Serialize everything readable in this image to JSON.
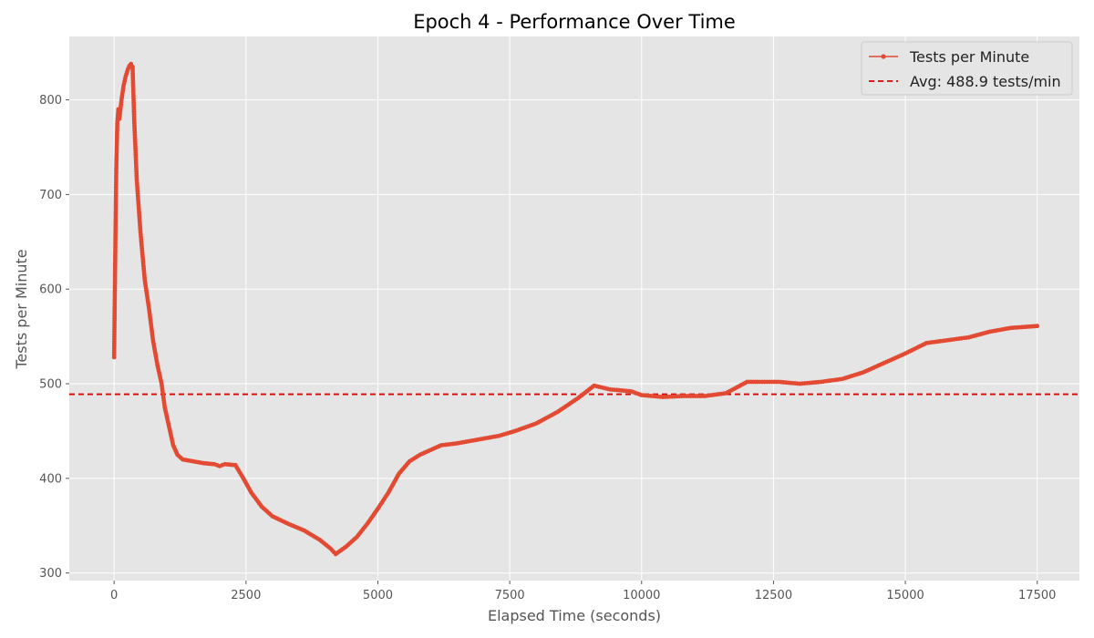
{
  "chart_data": {
    "type": "line",
    "title": "Epoch 4 - Performance Over Time",
    "xlabel": "Elapsed Time (seconds)",
    "ylabel": "Tests per Minute",
    "xlim": [
      -850,
      18300
    ],
    "ylim": [
      292,
      867
    ],
    "xticks": [
      0,
      2500,
      5000,
      7500,
      10000,
      12500,
      15000,
      17500
    ],
    "xtick_labels": [
      "0",
      "2500",
      "5000",
      "7500",
      "10000",
      "12500",
      "15000",
      "17500"
    ],
    "yticks": [
      300,
      400,
      500,
      600,
      700,
      800
    ],
    "ytick_labels": [
      "300",
      "400",
      "500",
      "600",
      "700",
      "800"
    ],
    "grid": true,
    "legend_position": "top-right",
    "colors": {
      "series": "#e24a33",
      "average": "#dd0000",
      "plot_background": "#e5e5e5",
      "grid": "#ffffff"
    },
    "series": [
      {
        "name": "Tests per Minute",
        "marker": "circle",
        "x": [
          0,
          20,
          40,
          60,
          80,
          100,
          140,
          180,
          220,
          260,
          290,
          320,
          350,
          380,
          430,
          500,
          580,
          660,
          740,
          820,
          900,
          960,
          1040,
          1120,
          1200,
          1300,
          1500,
          1700,
          1900,
          2000,
          2100,
          2300,
          2450,
          2600,
          2800,
          3000,
          3300,
          3600,
          3900,
          4100,
          4200,
          4400,
          4600,
          4800,
          5000,
          5200,
          5400,
          5600,
          5800,
          6000,
          6200,
          6500,
          6800,
          7000,
          7300,
          7600,
          8000,
          8400,
          8800,
          9100,
          9400,
          9800,
          10000,
          10400,
          10800,
          11200,
          11600,
          12000,
          12200,
          12600,
          13000,
          13400,
          13800,
          14200,
          14600,
          15000,
          15400,
          15800,
          16200,
          16600,
          17000,
          17500
        ],
        "y": [
          528,
          630,
          725,
          775,
          790,
          780,
          800,
          815,
          825,
          832,
          836,
          838,
          835,
          780,
          715,
          660,
          610,
          580,
          545,
          520,
          500,
          475,
          455,
          435,
          425,
          420,
          418,
          416,
          415,
          413,
          415,
          414,
          400,
          385,
          370,
          360,
          352,
          345,
          335,
          326,
          320,
          328,
          338,
          352,
          368,
          385,
          405,
          418,
          425,
          430,
          435,
          437,
          440,
          442,
          445,
          450,
          458,
          470,
          485,
          498,
          494,
          492,
          488,
          486,
          487,
          487,
          490,
          502,
          502,
          502,
          500,
          502,
          505,
          512,
          522,
          532,
          543,
          546,
          549,
          555,
          559,
          561
        ]
      }
    ],
    "average": {
      "label": "Avg: 488.9 tests/min",
      "value": 488.9,
      "style": "dashed"
    }
  }
}
